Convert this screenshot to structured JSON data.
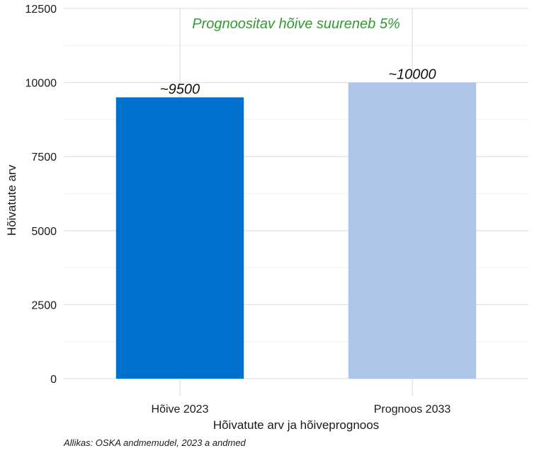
{
  "chart_data": {
    "type": "bar",
    "categories": [
      "Hõive 2023",
      "Prognoos 2033"
    ],
    "values": [
      9500,
      10000
    ],
    "bar_labels": [
      "~9500",
      "~10000"
    ],
    "colors": [
      "#0070cf",
      "#adc6e8"
    ],
    "annotation": "Prognoositav hõive suureneb 5%",
    "annotation_color": "#2e9c2e",
    "xlabel": "Hõivatute arv ja hõiveprognoos",
    "ylabel": "Hõivatute arv",
    "ylim": [
      0,
      12500
    ],
    "yticks": [
      "0",
      "2500",
      "5000",
      "7500",
      "10000",
      "12500"
    ],
    "grid": true,
    "caption": "Allikas: OSKA andmemudel, 2023 a andmed"
  }
}
